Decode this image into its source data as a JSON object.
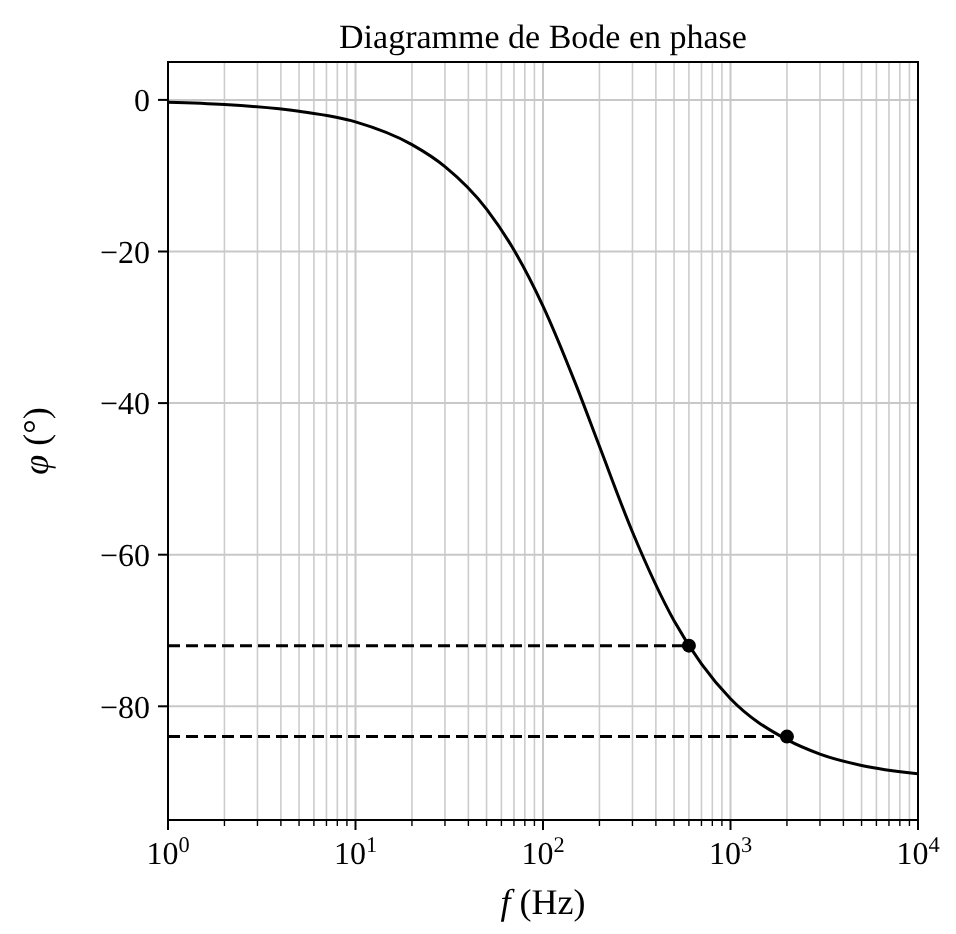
{
  "chart_data": {
    "type": "line",
    "title": "Diagramme de Bode en phase",
    "xlabel": "f (Hz)",
    "ylabel": "φ (°)",
    "log": "x",
    "grid": true,
    "xlim": [
      1,
      10000
    ],
    "ylim": [
      -95,
      5
    ],
    "xticks": [
      {
        "value": 1,
        "label": "10$^{0}$"
      },
      {
        "value": 10,
        "label": "10$^{1}$"
      },
      {
        "value": 100,
        "label": "10$^{2}$"
      },
      {
        "value": 1000,
        "label": "10$^{3}$"
      },
      {
        "value": 10000,
        "label": "10$^{4}$"
      }
    ],
    "yticks": [
      0,
      -20,
      -40,
      -60,
      -80
    ],
    "series": [
      {
        "color": "#000000",
        "line_style": "solid",
        "x": [
          1,
          2,
          5,
          10,
          20,
          30,
          50,
          70,
          100,
          150,
          200,
          300,
          500,
          700,
          1000,
          2000,
          3000,
          5000,
          10000
        ],
        "values": [
          -0.3,
          -0.6,
          -1.5,
          -2.9,
          -5.9,
          -8.8,
          -14.4,
          -19.8,
          -27.2,
          -37.6,
          -45.7,
          -57.0,
          -68.7,
          -74.4,
          -79.0,
          -84.4,
          -86.3,
          -87.8,
          -88.9
        ]
      },
      {
        "color": "#000000",
        "line_style": "dashed",
        "x": [
          1,
          600
        ],
        "values": [
          -72,
          -72
        ]
      },
      {
        "color": "#000000",
        "line_style": "dashed",
        "x": [
          1,
          2000
        ],
        "values": [
          -84,
          -84
        ]
      },
      {
        "type": "scatter",
        "color": "#000000",
        "marker": "circle",
        "x": [
          600,
          2000
        ],
        "values": [
          -72,
          -84
        ]
      }
    ]
  }
}
